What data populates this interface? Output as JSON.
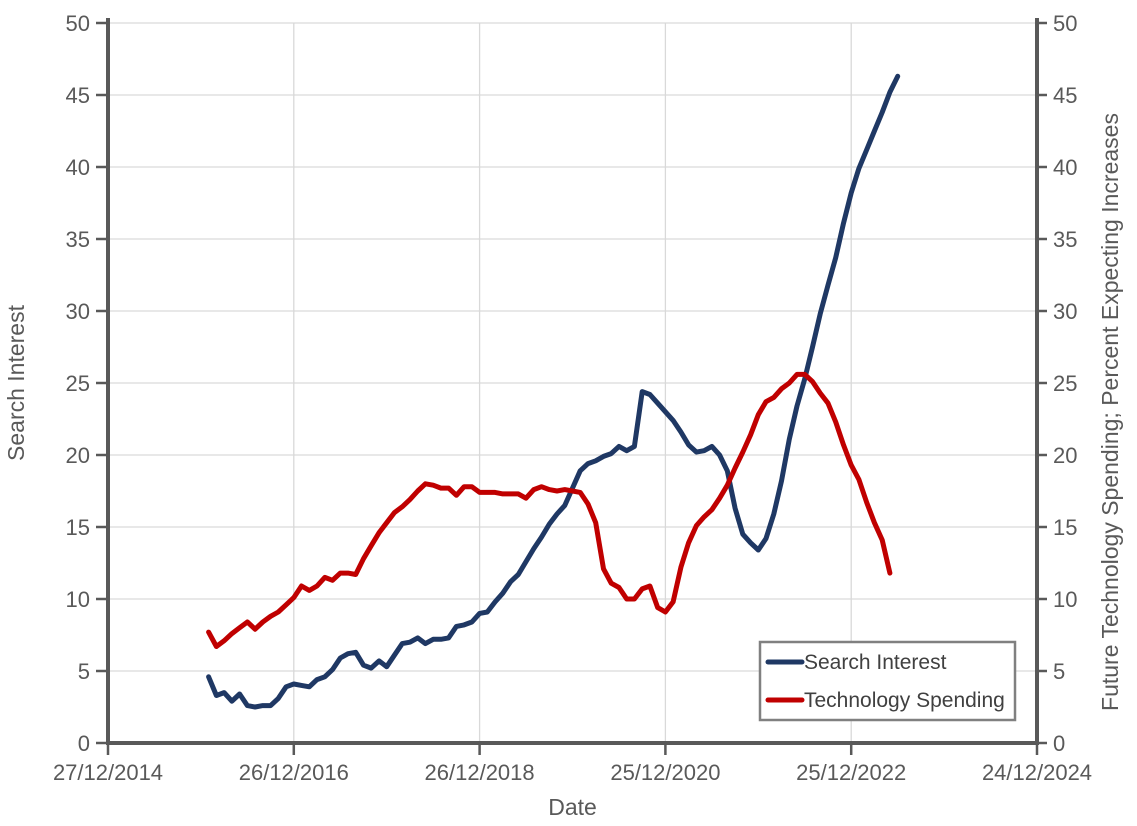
{
  "chart_data": {
    "type": "line",
    "title": "",
    "xlabel": "Date",
    "ylabel_left": "Search Interest",
    "ylabel_right": "Future Technology Spending; Percent Expecting Increases",
    "x_tick_labels": [
      "27/12/2014",
      "26/12/2016",
      "26/12/2018",
      "25/12/2020",
      "25/12/2022",
      "24/12/2024"
    ],
    "y_tick_labels": [
      "0",
      "5",
      "10",
      "15",
      "20",
      "25",
      "30",
      "35",
      "40",
      "45",
      "50"
    ],
    "ylim": [
      0,
      50
    ],
    "y_tick_step": 5,
    "x_range_months": 120,
    "months_per_x_tick": 24,
    "series_start_month_offset": 13,
    "grid": true,
    "legend_position": "bottom-right",
    "series": [
      {
        "name": "Search Interest",
        "axis": "left",
        "color": "#1F3864",
        "values": [
          4.6,
          3.3,
          3.5,
          2.9,
          3.4,
          2.6,
          2.5,
          2.6,
          2.6,
          3.1,
          3.9,
          4.1,
          4.0,
          3.9,
          4.4,
          4.6,
          5.1,
          5.9,
          6.2,
          6.3,
          5.4,
          5.2,
          5.7,
          5.3,
          6.1,
          6.9,
          7.0,
          7.3,
          6.9,
          7.2,
          7.2,
          7.3,
          8.1,
          8.2,
          8.4,
          9.0,
          9.1,
          9.8,
          10.4,
          11.2,
          11.7,
          12.6,
          13.5,
          14.3,
          15.2,
          15.9,
          16.5,
          17.7,
          18.9,
          19.4,
          19.6,
          19.9,
          20.1,
          20.6,
          20.3,
          20.6,
          24.4,
          24.2,
          23.6,
          23.0,
          22.4,
          21.6,
          20.7,
          20.2,
          20.3,
          20.6,
          20.0,
          18.9,
          16.3,
          14.5,
          13.9,
          13.4,
          14.2,
          15.9,
          18.2,
          21.1,
          23.4,
          25.3,
          27.5,
          29.8,
          31.8,
          33.7,
          36.1,
          38.2,
          39.9,
          41.2,
          42.5,
          43.8,
          45.2,
          46.3
        ]
      },
      {
        "name": "Technology Spending",
        "axis": "right",
        "color": "#C00000",
        "values": [
          7.7,
          6.7,
          7.1,
          7.6,
          8.0,
          8.4,
          7.9,
          8.4,
          8.8,
          9.1,
          9.6,
          10.1,
          10.9,
          10.6,
          10.9,
          11.5,
          11.3,
          11.8,
          11.8,
          11.7,
          12.8,
          13.7,
          14.6,
          15.3,
          16.0,
          16.4,
          16.9,
          17.5,
          18.0,
          17.9,
          17.7,
          17.7,
          17.2,
          17.8,
          17.8,
          17.4,
          17.4,
          17.4,
          17.3,
          17.3,
          17.3,
          17.0,
          17.6,
          17.8,
          17.6,
          17.5,
          17.6,
          17.5,
          17.4,
          16.6,
          15.3,
          12.1,
          11.1,
          10.8,
          10.0,
          10.0,
          10.7,
          10.9,
          9.4,
          9.1,
          9.8,
          12.2,
          13.9,
          15.1,
          15.7,
          16.2,
          17.0,
          17.9,
          19.1,
          20.2,
          21.4,
          22.8,
          23.7,
          24.0,
          24.6,
          25.0,
          25.6,
          25.6,
          25.1,
          24.3,
          23.6,
          22.3,
          20.7,
          19.3,
          18.3,
          16.7,
          15.3,
          14.1,
          11.8
        ]
      }
    ],
    "colors": {
      "axis": "#595959",
      "grid": "#D9D9D9",
      "tick_text": "#595959",
      "title_text": "#595959",
      "legend_text": "#404040",
      "legend_border": "#808080",
      "background": "#FFFFFF"
    }
  }
}
